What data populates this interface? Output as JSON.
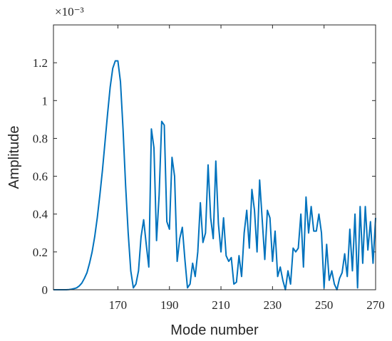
{
  "chart_data": {
    "type": "line",
    "x_label": "Mode number",
    "y_label": "Amplitude",
    "y_exponent": "×10⁻³",
    "x": [
      145,
      146,
      147,
      148,
      149,
      150,
      151,
      152,
      153,
      154,
      155,
      156,
      157,
      158,
      159,
      160,
      161,
      162,
      163,
      164,
      165,
      166,
      167,
      168,
      169,
      170,
      171,
      172,
      173,
      174,
      175,
      176,
      177,
      178,
      179,
      180,
      181,
      182,
      183,
      184,
      185,
      186,
      187,
      188,
      189,
      190,
      191,
      192,
      193,
      194,
      195,
      196,
      197,
      198,
      199,
      200,
      201,
      202,
      203,
      204,
      205,
      206,
      207,
      208,
      209,
      210,
      211,
      212,
      213,
      214,
      215,
      216,
      217,
      218,
      219,
      220,
      221,
      222,
      223,
      224,
      225,
      226,
      227,
      228,
      229,
      230,
      231,
      232,
      233,
      234,
      235,
      236,
      237,
      238,
      239,
      240,
      241,
      242,
      243,
      244,
      245,
      246,
      247,
      248,
      249,
      250,
      251,
      252,
      253,
      254,
      255,
      256,
      257,
      258,
      259,
      260,
      261,
      262,
      263,
      264,
      265,
      266,
      267,
      268,
      269,
      270
    ],
    "series": [
      {
        "name": "Amplitude",
        "color": "#0072bd",
        "values": [
          0,
          0,
          0,
          0,
          0,
          0,
          0.001,
          0.003,
          0.006,
          0.01,
          0.02,
          0.035,
          0.06,
          0.09,
          0.14,
          0.2,
          0.28,
          0.38,
          0.5,
          0.63,
          0.78,
          0.93,
          1.07,
          1.17,
          1.21,
          1.21,
          1.1,
          0.85,
          0.55,
          0.3,
          0.1,
          0.01,
          0.03,
          0.1,
          0.28,
          0.37,
          0.24,
          0.12,
          0.85,
          0.75,
          0.26,
          0.5,
          0.89,
          0.87,
          0.36,
          0.32,
          0.7,
          0.6,
          0.15,
          0.27,
          0.33,
          0.16,
          0.01,
          0.03,
          0.14,
          0.07,
          0.2,
          0.46,
          0.25,
          0.3,
          0.66,
          0.38,
          0.27,
          0.68,
          0.35,
          0.2,
          0.38,
          0.18,
          0.15,
          0.17,
          0.03,
          0.04,
          0.18,
          0.07,
          0.3,
          0.42,
          0.22,
          0.53,
          0.42,
          0.2,
          0.58,
          0.37,
          0.16,
          0.42,
          0.38,
          0.15,
          0.31,
          0.07,
          0.12,
          0.05,
          0,
          0.1,
          0.03,
          0.22,
          0.2,
          0.22,
          0.4,
          0.12,
          0.49,
          0.3,
          0.44,
          0.31,
          0.31,
          0.4,
          0.3,
          0.01,
          0.24,
          0.05,
          0.1,
          0.03,
          0,
          0.06,
          0.09,
          0.19,
          0.07,
          0.32,
          0.1,
          0.4,
          0.01,
          0.44,
          0.14,
          0.44,
          0.21,
          0.36,
          0.14,
          0.38
        ]
      }
    ],
    "xlim": [
      145,
      270
    ],
    "ylim": [
      0,
      1.4
    ],
    "xticks": [
      170,
      190,
      210,
      230,
      250,
      270
    ],
    "yticks": [
      0,
      0.2,
      0.4,
      0.6,
      0.8,
      1,
      1.2
    ],
    "grid": false
  }
}
